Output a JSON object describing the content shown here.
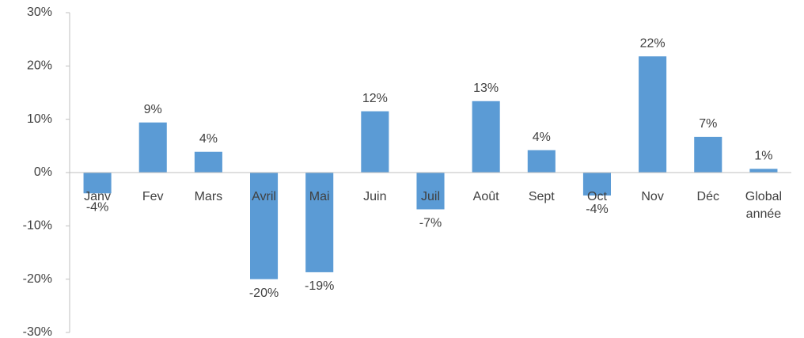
{
  "chart_data": {
    "type": "bar",
    "categories": [
      "Janv",
      "Fev",
      "Mars",
      "Avril",
      "Mai",
      "Juin",
      "Juil",
      "Août",
      "Sept",
      "Oct",
      "Nov",
      "Déc",
      "Global année"
    ],
    "values": [
      -3.9,
      9.4,
      3.9,
      -20.0,
      -18.7,
      11.5,
      -6.9,
      13.4,
      4.2,
      -4.3,
      21.8,
      6.7,
      0.7
    ],
    "value_labels": [
      "-4%",
      "9%",
      "4%",
      "-20%",
      "-19%",
      "12%",
      "-7%",
      "13%",
      "4%",
      "-4%",
      "22%",
      "7%",
      "1%"
    ],
    "color": "#5b9bd5",
    "ylim": [
      -30,
      30
    ],
    "yticks": [
      {
        "value": -30,
        "label": "-30%"
      },
      {
        "value": -20,
        "label": "-20%"
      },
      {
        "value": -10,
        "label": "-10%"
      },
      {
        "value": 0,
        "label": "0%"
      },
      {
        "value": 10,
        "label": "10%"
      },
      {
        "value": 20,
        "label": "20%"
      },
      {
        "value": 30,
        "label": "30%"
      }
    ],
    "grid": false
  }
}
